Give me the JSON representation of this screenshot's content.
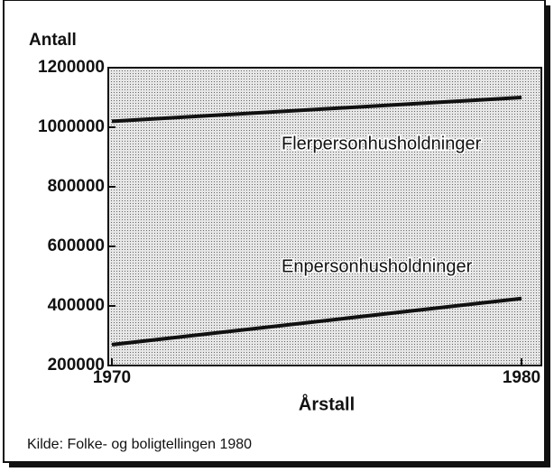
{
  "chart_data": {
    "type": "line",
    "y_label": "Antall",
    "x_label": "Årstall",
    "source": "Kilde: Folke- og boligtellingen 1980",
    "x": [
      1970,
      1980
    ],
    "series": [
      {
        "name": "Flerpersonhusholdninger",
        "color": "#111111",
        "values": [
          1020000,
          1100000
        ]
      },
      {
        "name": "Enpersonhusholdninger",
        "color": "#111111",
        "values": [
          270000,
          425000
        ]
      }
    ],
    "xlim": [
      1970,
      1980
    ],
    "xticks": [
      1970,
      1980
    ],
    "ylim": [
      200000,
      1200000
    ],
    "yticks": [
      200000,
      400000,
      600000,
      800000,
      1000000,
      1200000
    ]
  }
}
